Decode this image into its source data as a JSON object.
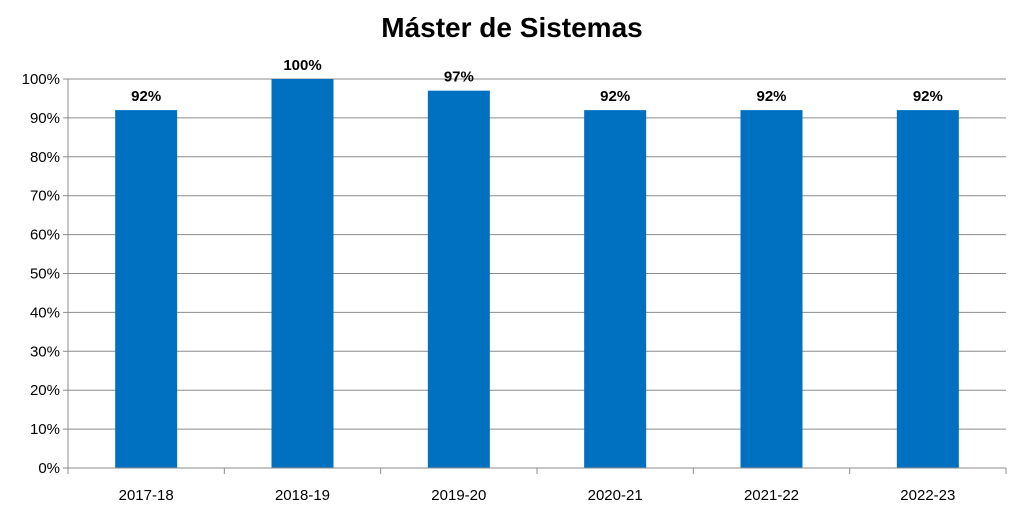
{
  "chart_data": {
    "type": "bar",
    "title": "Máster de Sistemas",
    "categories": [
      "2017-18",
      "2018-19",
      "2019-20",
      "2020-21",
      "2021-22",
      "2022-23"
    ],
    "values": [
      92,
      100,
      97,
      92,
      92,
      92
    ],
    "data_labels": [
      "92%",
      "100%",
      "97%",
      "92%",
      "92%",
      "92%"
    ],
    "ylim": [
      0,
      100
    ],
    "yticks": [
      0,
      10,
      20,
      30,
      40,
      50,
      60,
      70,
      80,
      90,
      100
    ],
    "ytick_labels": [
      "0%",
      "10%",
      "20%",
      "30%",
      "40%",
      "50%",
      "60%",
      "70%",
      "80%",
      "90%",
      "100%"
    ],
    "grid": true,
    "legend": false,
    "bar_color": "#0070C0"
  }
}
